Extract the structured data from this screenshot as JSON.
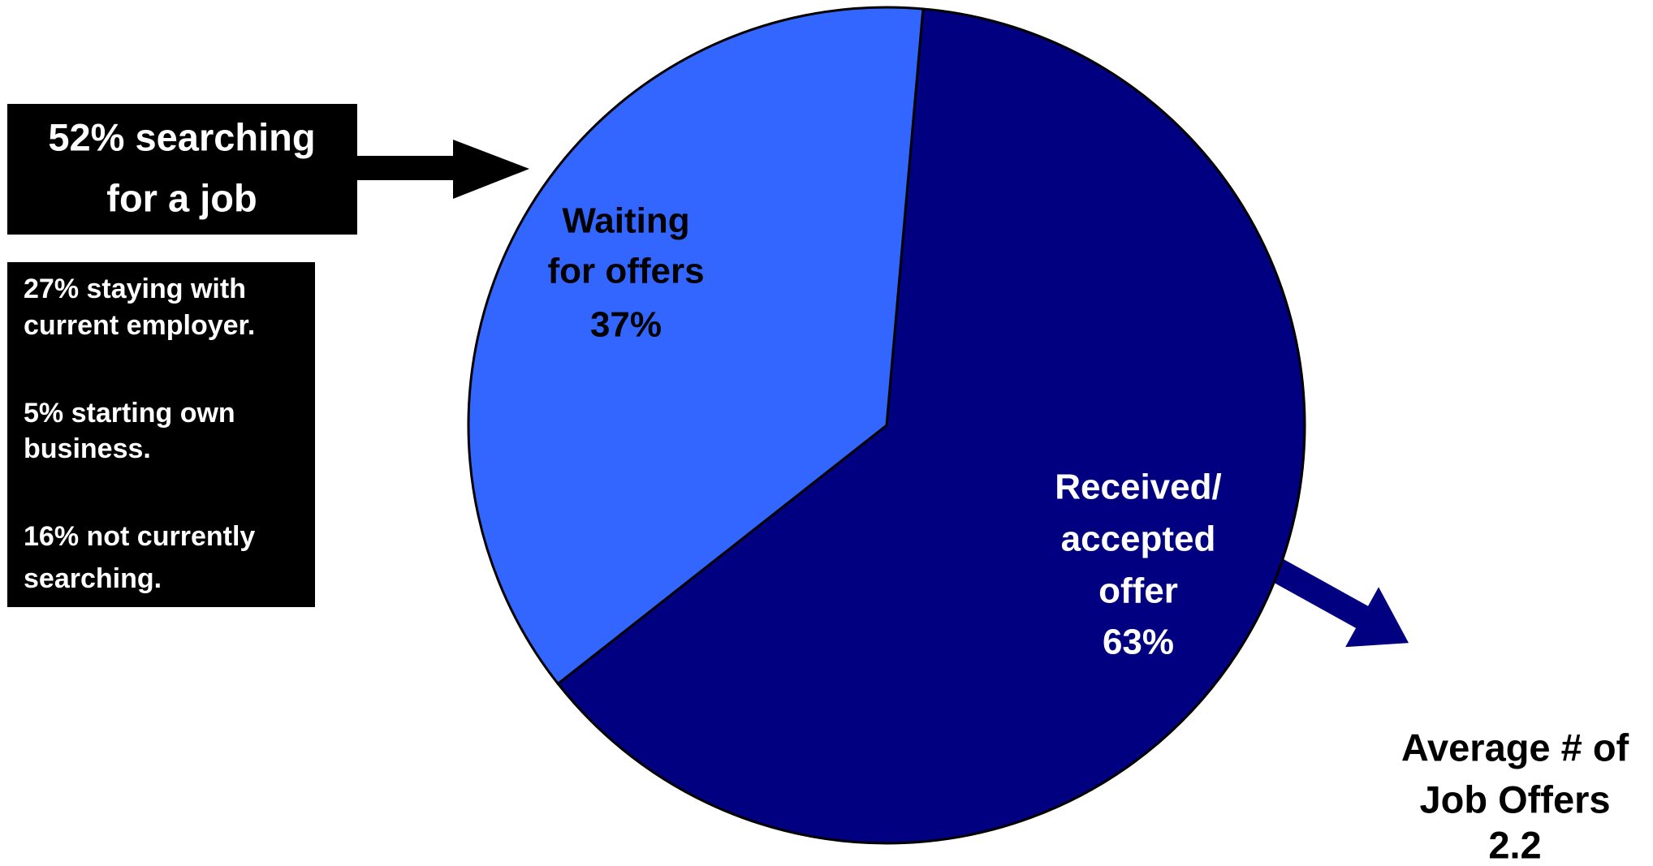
{
  "chart_data": {
    "type": "pie",
    "categories": [
      [
        "Received/",
        "accepted",
        "offer"
      ],
      [
        "Waiting",
        "for offers"
      ]
    ],
    "values": [
      63,
      37
    ],
    "value_labels": [
      "63%",
      "37%"
    ],
    "colors": [
      "#000080",
      "#3366ff"
    ],
    "annotations": {
      "searching": [
        "52% searching",
        "for a job"
      ],
      "others": [
        [
          "27% staying with",
          "current employer."
        ],
        [
          "5% starting own",
          "business."
        ],
        [
          "16% not currently",
          "searching."
        ]
      ],
      "average_offers": {
        "label": [
          "Average # of",
          "Job Offers"
        ],
        "value": 2.2
      }
    }
  }
}
